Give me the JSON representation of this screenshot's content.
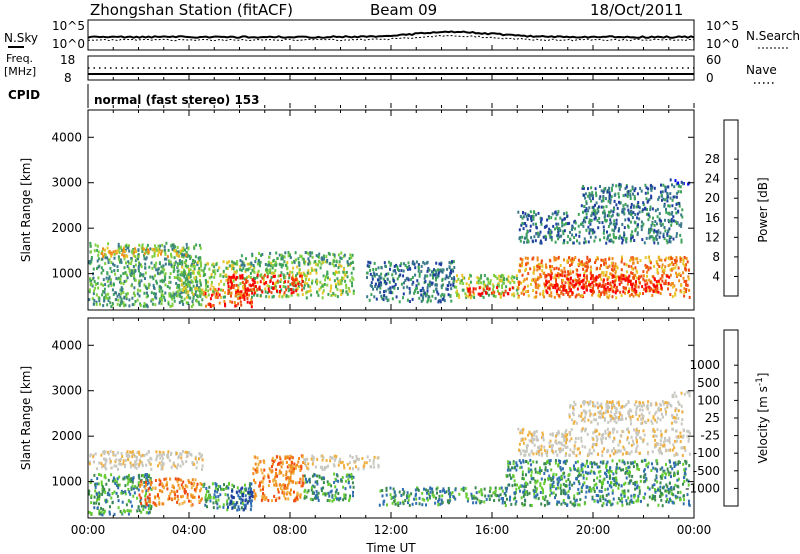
{
  "header": {
    "station": "Zhongshan Station (fitACF)",
    "beam": "Beam 09",
    "date": "18/Oct/2011",
    "cpid_label": "CPID",
    "cpid_value": "normal (fast stereo) 153"
  },
  "top_panels": {
    "noise": {
      "left_label": "N.Sky",
      "right_label": "N.Search",
      "left_ticks": [
        "10^5",
        "10^0"
      ],
      "right_ticks": [
        "10^5",
        "10^0"
      ]
    },
    "freq": {
      "left_label_1": "Freq.",
      "left_label_2": "[MHz]",
      "right_label": "Nave",
      "left_ticks": [
        "18",
        "8"
      ],
      "right_ticks": [
        "60",
        "0"
      ]
    }
  },
  "colors": {
    "power_scale": [
      "#0000ff",
      "#1f3f9f",
      "#3a7a8a",
      "#3fa35a",
      "#7fcf3f",
      "#e8c52a",
      "#f08a1a",
      "#f04a10",
      "#ff0000"
    ],
    "velocity_scale": [
      "#ff0000",
      "#f04a10",
      "#f08a1a",
      "#f0b040",
      "#c8c8c0",
      "#c8c8c0",
      "#66cc33",
      "#3a8a50",
      "#2f6fb0",
      "#1f3fa0"
    ]
  },
  "chart_data": [
    {
      "type": "heatmap",
      "name": "power",
      "ylabel": "Slant Range [km]",
      "yticks": [
        1000,
        2000,
        3000,
        4000
      ],
      "ylim": [
        200,
        4600
      ],
      "xlim": [
        0,
        24
      ],
      "colorbar": {
        "label": "Power [dB]",
        "ticks": [
          "4",
          "8",
          "12",
          "16",
          "20",
          "24",
          "28"
        ],
        "range": [
          0,
          32
        ]
      },
      "echo_regions": [
        {
          "t0": 0.0,
          "t1": 4.5,
          "r0": 300,
          "r1": 1700,
          "level": 3
        },
        {
          "t0": 0.5,
          "t1": 4.0,
          "r0": 1400,
          "r1": 1600,
          "level": 5
        },
        {
          "t0": 3.5,
          "t1": 10.5,
          "r0": 500,
          "r1": 1300,
          "level": 4
        },
        {
          "t0": 5.5,
          "t1": 8.5,
          "r0": 600,
          "r1": 1000,
          "level": 8
        },
        {
          "t0": 4.5,
          "t1": 6.5,
          "r0": 300,
          "r1": 700,
          "level": 7
        },
        {
          "t0": 6.0,
          "t1": 10.5,
          "r0": 1200,
          "r1": 1500,
          "level": 3
        },
        {
          "t0": 11.0,
          "t1": 14.5,
          "r0": 400,
          "r1": 1300,
          "level": 2
        },
        {
          "t0": 14.5,
          "t1": 17.0,
          "r0": 500,
          "r1": 1000,
          "level": 4
        },
        {
          "t0": 15.0,
          "t1": 16.8,
          "r0": 550,
          "r1": 750,
          "level": 8
        },
        {
          "t0": 17.0,
          "t1": 23.8,
          "r0": 500,
          "r1": 1400,
          "level": 6
        },
        {
          "t0": 18.0,
          "t1": 23.0,
          "r0": 600,
          "r1": 1000,
          "level": 8
        },
        {
          "t0": 17.0,
          "t1": 23.5,
          "r0": 1700,
          "r1": 2400,
          "level": 2
        },
        {
          "t0": 19.5,
          "t1": 23.5,
          "r0": 2400,
          "r1": 3000,
          "level": 2
        },
        {
          "t0": 23.0,
          "t1": 23.8,
          "r0": 3000,
          "r1": 3100,
          "level": 1
        }
      ]
    },
    {
      "type": "heatmap",
      "name": "velocity",
      "xlabel": "Time UT",
      "ylabel": "Slant Range [km]",
      "yticks": [
        1000,
        2000,
        3000,
        4000
      ],
      "ylim": [
        200,
        4600
      ],
      "xlim": [
        0,
        24
      ],
      "xticks": [
        "00:00",
        "04:00",
        "08:00",
        "12:00",
        "16:00",
        "20:00",
        "00:00"
      ],
      "colorbar": {
        "label": "Velocity [m s^-1]",
        "ticks": [
          "-1000",
          "-500",
          "-100",
          "-25",
          "25",
          "100",
          "500",
          "1000"
        ],
        "range": [
          -1250,
          1250
        ]
      },
      "echo_regions": [
        {
          "t0": 0.0,
          "t1": 4.5,
          "r0": 1300,
          "r1": 1700,
          "level": 4
        },
        {
          "t0": 0.0,
          "t1": 2.5,
          "r0": 300,
          "r1": 1200,
          "level": 7
        },
        {
          "t0": 2.0,
          "t1": 4.5,
          "r0": 500,
          "r1": 1100,
          "level": 2
        },
        {
          "t0": 4.5,
          "t1": 6.5,
          "r0": 400,
          "r1": 1000,
          "level": 7
        },
        {
          "t0": 5.5,
          "t1": 6.5,
          "r0": 400,
          "r1": 900,
          "level": 9
        },
        {
          "t0": 6.5,
          "t1": 8.5,
          "r0": 600,
          "r1": 1600,
          "level": 2
        },
        {
          "t0": 8.5,
          "t1": 11.5,
          "r0": 1300,
          "r1": 1600,
          "level": 4
        },
        {
          "t0": 8.5,
          "t1": 10.5,
          "r0": 600,
          "r1": 1200,
          "level": 7
        },
        {
          "t0": 11.5,
          "t1": 16.5,
          "r0": 500,
          "r1": 900,
          "level": 7
        },
        {
          "t0": 16.5,
          "t1": 23.8,
          "r0": 500,
          "r1": 1500,
          "level": 7
        },
        {
          "t0": 17.0,
          "t1": 23.8,
          "r0": 1600,
          "r1": 2200,
          "level": 4
        },
        {
          "t0": 19.0,
          "t1": 23.5,
          "r0": 2300,
          "r1": 2800,
          "level": 4
        },
        {
          "t0": 23.0,
          "t1": 23.8,
          "r0": 2900,
          "r1": 3050,
          "level": 4
        }
      ]
    }
  ]
}
